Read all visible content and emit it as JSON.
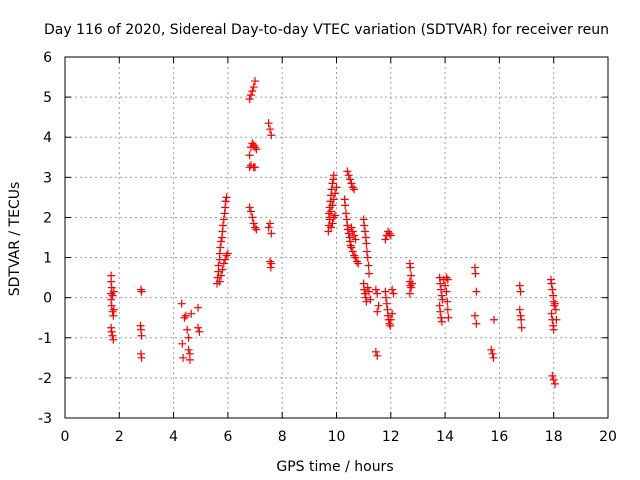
{
  "colors": {
    "marker": "#ff0000",
    "grid": "#a0a0a0",
    "axis": "#000000",
    "background": "#ffffff"
  },
  "chart_data": {
    "type": "scatter",
    "title": "Day 116 of 2020, Sidereal Day-to-day VTEC variation (SDTVAR) for receiver reun",
    "xlabel": "GPS time / hours",
    "ylabel": "SDTVAR / TECUs",
    "xlim": [
      0,
      20
    ],
    "ylim": [
      -3,
      6
    ],
    "xticks": [
      0,
      2,
      4,
      6,
      8,
      10,
      12,
      14,
      16,
      18,
      20
    ],
    "yticks": [
      -3,
      -2,
      -1,
      0,
      1,
      2,
      3,
      4,
      5,
      6
    ],
    "grid": true,
    "marker": "plus",
    "series": [
      {
        "name": "SDTVAR",
        "points": [
          [
            1.7,
            0.55
          ],
          [
            1.7,
            0.4
          ],
          [
            1.72,
            0.25
          ],
          [
            1.7,
            0.1
          ],
          [
            1.75,
            0.05
          ],
          [
            1.7,
            -0.05
          ],
          [
            1.72,
            -0.2
          ],
          [
            1.75,
            -0.35
          ],
          [
            1.78,
            -0.45
          ],
          [
            1.7,
            -0.75
          ],
          [
            1.72,
            -0.85
          ],
          [
            1.75,
            -0.95
          ],
          [
            1.78,
            -1.05
          ],
          [
            1.8,
            0.15
          ],
          [
            1.8,
            -0.3
          ],
          [
            2.8,
            0.2
          ],
          [
            2.82,
            0.15
          ],
          [
            2.78,
            -0.7
          ],
          [
            2.8,
            -0.8
          ],
          [
            2.82,
            -0.95
          ],
          [
            2.8,
            -1.4
          ],
          [
            2.82,
            -1.5
          ],
          [
            4.3,
            -0.15
          ],
          [
            4.32,
            -1.15
          ],
          [
            4.35,
            -1.5
          ],
          [
            4.4,
            -0.5
          ],
          [
            4.45,
            -0.45
          ],
          [
            4.5,
            -0.8
          ],
          [
            4.55,
            -1.0
          ],
          [
            4.55,
            -1.3
          ],
          [
            4.6,
            -1.4
          ],
          [
            4.6,
            -1.55
          ],
          [
            4.65,
            -0.4
          ],
          [
            4.9,
            -0.25
          ],
          [
            4.9,
            -0.75
          ],
          [
            4.95,
            -0.85
          ],
          [
            5.6,
            0.35
          ],
          [
            5.62,
            0.5
          ],
          [
            5.65,
            0.65
          ],
          [
            5.65,
            0.8
          ],
          [
            5.7,
            0.95
          ],
          [
            5.7,
            1.1
          ],
          [
            5.72,
            1.25
          ],
          [
            5.75,
            1.4
          ],
          [
            5.78,
            1.5
          ],
          [
            5.8,
            1.65
          ],
          [
            5.82,
            1.8
          ],
          [
            5.85,
            1.95
          ],
          [
            5.88,
            2.1
          ],
          [
            5.9,
            2.25
          ],
          [
            5.92,
            2.4
          ],
          [
            5.95,
            2.5
          ],
          [
            5.7,
            0.4
          ],
          [
            5.75,
            0.55
          ],
          [
            5.8,
            0.7
          ],
          [
            5.85,
            0.85
          ],
          [
            5.9,
            0.95
          ],
          [
            5.95,
            1.05
          ],
          [
            6.0,
            1.1
          ],
          [
            6.8,
            4.95
          ],
          [
            6.85,
            5.05
          ],
          [
            6.9,
            5.15
          ],
          [
            6.95,
            5.25
          ],
          [
            7.0,
            5.4
          ],
          [
            6.8,
            3.55
          ],
          [
            6.85,
            3.75
          ],
          [
            6.9,
            3.85
          ],
          [
            6.95,
            3.8
          ],
          [
            7.0,
            3.75
          ],
          [
            7.05,
            3.7
          ],
          [
            6.8,
            3.25
          ],
          [
            6.85,
            3.3
          ],
          [
            6.95,
            3.25
          ],
          [
            7.0,
            3.25
          ],
          [
            6.8,
            2.25
          ],
          [
            6.85,
            2.15
          ],
          [
            6.9,
            2.0
          ],
          [
            6.95,
            1.85
          ],
          [
            7.0,
            1.75
          ],
          [
            7.05,
            1.7
          ],
          [
            7.5,
            4.35
          ],
          [
            7.55,
            4.2
          ],
          [
            7.6,
            4.05
          ],
          [
            7.55,
            1.85
          ],
          [
            7.5,
            1.75
          ],
          [
            7.6,
            1.6
          ],
          [
            7.55,
            0.9
          ],
          [
            7.6,
            0.85
          ],
          [
            7.58,
            0.75
          ],
          [
            9.7,
            1.65
          ],
          [
            9.72,
            1.8
          ],
          [
            9.75,
            1.95
          ],
          [
            9.72,
            2.1
          ],
          [
            9.75,
            2.25
          ],
          [
            9.78,
            2.4
          ],
          [
            9.8,
            2.55
          ],
          [
            9.82,
            2.7
          ],
          [
            9.85,
            2.85
          ],
          [
            9.88,
            2.95
          ],
          [
            9.9,
            3.05
          ],
          [
            9.75,
            2.0
          ],
          [
            9.8,
            2.15
          ],
          [
            9.85,
            2.3
          ],
          [
            9.9,
            2.45
          ],
          [
            9.95,
            2.6
          ],
          [
            10.0,
            2.75
          ],
          [
            9.8,
            1.75
          ],
          [
            9.85,
            1.85
          ],
          [
            9.9,
            2.0
          ],
          [
            9.95,
            2.05
          ],
          [
            10.3,
            2.45
          ],
          [
            10.32,
            2.3
          ],
          [
            10.35,
            2.1
          ],
          [
            10.38,
            1.95
          ],
          [
            10.4,
            1.8
          ],
          [
            10.42,
            1.7
          ],
          [
            10.45,
            1.6
          ],
          [
            10.48,
            1.5
          ],
          [
            10.5,
            1.4
          ],
          [
            10.52,
            1.3
          ],
          [
            10.4,
            3.15
          ],
          [
            10.45,
            3.05
          ],
          [
            10.5,
            2.95
          ],
          [
            10.55,
            2.85
          ],
          [
            10.6,
            2.75
          ],
          [
            10.65,
            2.7
          ],
          [
            10.55,
            1.75
          ],
          [
            10.6,
            1.65
          ],
          [
            10.65,
            1.55
          ],
          [
            10.7,
            1.45
          ],
          [
            10.55,
            1.25
          ],
          [
            10.6,
            1.15
          ],
          [
            10.65,
            1.05
          ],
          [
            10.7,
            1.0
          ],
          [
            10.75,
            0.9
          ],
          [
            10.8,
            0.85
          ],
          [
            11.0,
            1.95
          ],
          [
            11.02,
            1.8
          ],
          [
            11.05,
            1.65
          ],
          [
            11.08,
            1.5
          ],
          [
            11.1,
            1.35
          ],
          [
            11.12,
            1.15
          ],
          [
            11.15,
            1.0
          ],
          [
            11.18,
            0.8
          ],
          [
            11.2,
            0.6
          ],
          [
            11.0,
            0.35
          ],
          [
            11.02,
            0.2
          ],
          [
            11.05,
            0.1
          ],
          [
            11.08,
            0.0
          ],
          [
            11.1,
            -0.1
          ],
          [
            11.15,
            0.25
          ],
          [
            11.2,
            0.15
          ],
          [
            11.25,
            -0.05
          ],
          [
            11.45,
            0.2
          ],
          [
            11.5,
            0.1
          ],
          [
            11.55,
            -0.2
          ],
          [
            11.5,
            -0.35
          ],
          [
            11.45,
            -1.35
          ],
          [
            11.5,
            -1.45
          ],
          [
            11.8,
            0.15
          ],
          [
            11.82,
            0.0
          ],
          [
            11.85,
            -0.15
          ],
          [
            11.88,
            -0.3
          ],
          [
            11.9,
            -0.45
          ],
          [
            11.92,
            -0.55
          ],
          [
            11.95,
            -0.65
          ],
          [
            11.98,
            -0.7
          ],
          [
            12.0,
            -0.55
          ],
          [
            12.05,
            -0.4
          ],
          [
            11.8,
            1.45
          ],
          [
            11.85,
            1.55
          ],
          [
            11.9,
            1.65
          ],
          [
            11.95,
            1.6
          ],
          [
            12.0,
            1.55
          ],
          [
            12.05,
            0.2
          ],
          [
            12.1,
            0.1
          ],
          [
            12.7,
            0.85
          ],
          [
            12.72,
            0.75
          ],
          [
            12.75,
            0.55
          ],
          [
            12.7,
            0.4
          ],
          [
            12.72,
            0.3
          ],
          [
            12.75,
            0.25
          ],
          [
            12.78,
            0.35
          ],
          [
            12.7,
            0.1
          ],
          [
            13.8,
            0.5
          ],
          [
            13.82,
            0.35
          ],
          [
            13.85,
            0.2
          ],
          [
            13.88,
            0.05
          ],
          [
            13.9,
            -0.05
          ],
          [
            13.8,
            -0.2
          ],
          [
            13.82,
            -0.35
          ],
          [
            13.85,
            -0.5
          ],
          [
            13.88,
            -0.6
          ],
          [
            13.95,
            0.45
          ],
          [
            14.0,
            0.3
          ],
          [
            14.05,
            0.15
          ],
          [
            14.08,
            -0.1
          ],
          [
            14.1,
            -0.3
          ],
          [
            14.12,
            -0.5
          ],
          [
            14.05,
            0.5
          ],
          [
            14.1,
            0.45
          ],
          [
            15.1,
            0.75
          ],
          [
            15.12,
            0.6
          ],
          [
            15.15,
            0.15
          ],
          [
            15.1,
            -0.45
          ],
          [
            15.15,
            -0.65
          ],
          [
            15.8,
            -0.55
          ],
          [
            15.7,
            -1.3
          ],
          [
            15.75,
            -1.4
          ],
          [
            15.78,
            -1.5
          ],
          [
            16.75,
            0.3
          ],
          [
            16.78,
            0.15
          ],
          [
            16.75,
            -0.3
          ],
          [
            16.78,
            -0.45
          ],
          [
            16.8,
            -0.55
          ],
          [
            16.82,
            -0.75
          ],
          [
            17.9,
            0.45
          ],
          [
            17.92,
            0.35
          ],
          [
            17.95,
            0.2
          ],
          [
            17.98,
            0.05
          ],
          [
            18.0,
            -0.1
          ],
          [
            18.02,
            -0.2
          ],
          [
            17.92,
            -0.4
          ],
          [
            17.95,
            -0.55
          ],
          [
            17.98,
            -0.7
          ],
          [
            18.0,
            -0.8
          ],
          [
            18.05,
            -0.15
          ],
          [
            18.08,
            -0.3
          ],
          [
            18.1,
            -0.55
          ],
          [
            17.95,
            -1.95
          ],
          [
            18.0,
            -2.05
          ],
          [
            18.05,
            -2.15
          ]
        ]
      }
    ]
  }
}
